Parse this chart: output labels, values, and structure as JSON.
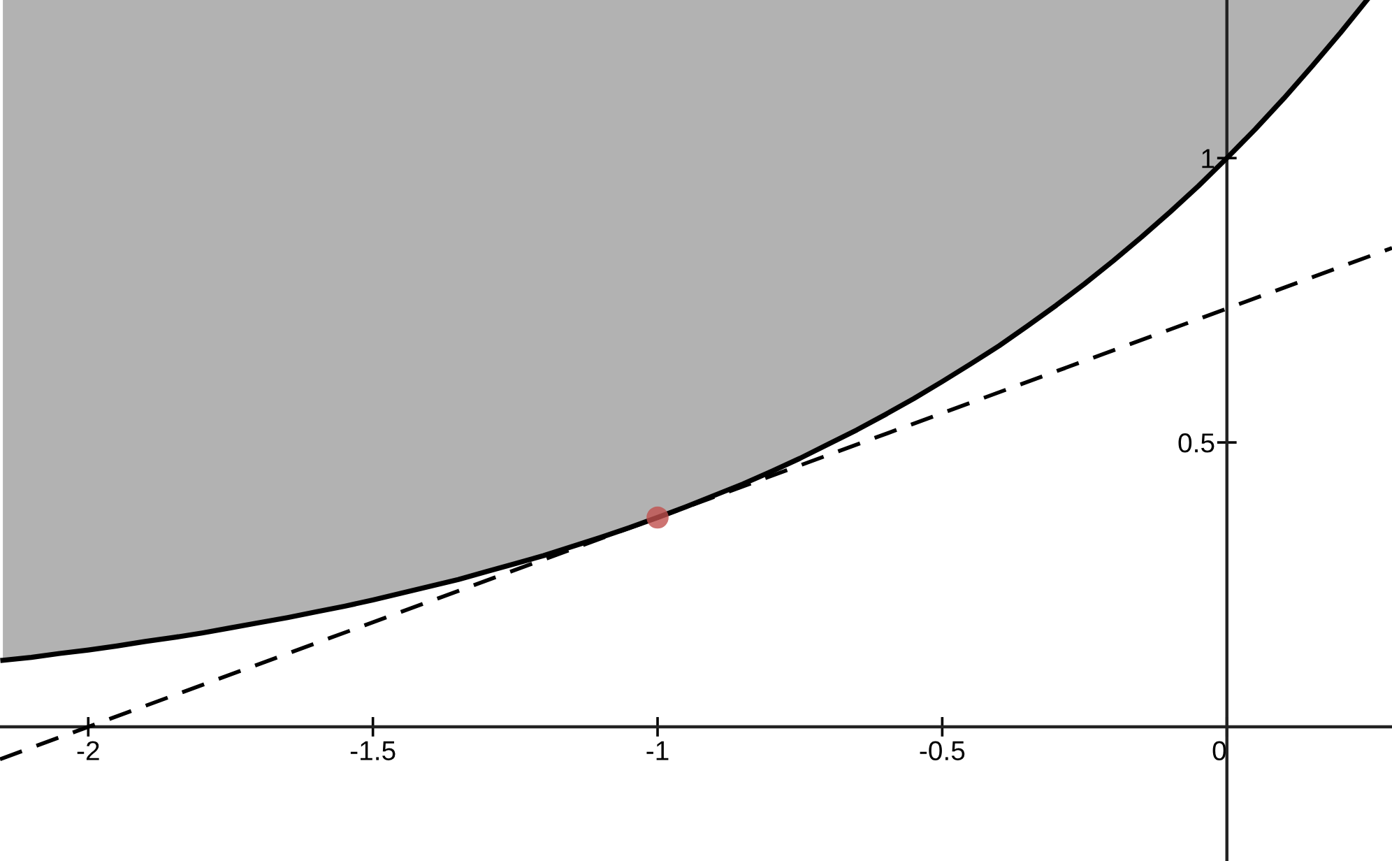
{
  "chart_data": {
    "type": "line",
    "xlim": [
      -2.155,
      0.29
    ],
    "ylim": [
      -0.236,
      1.278
    ],
    "xticks": [
      -2,
      -1.5,
      -1,
      -0.5,
      0
    ],
    "yticks": [
      0.5,
      1
    ],
    "grid": false,
    "legend": false,
    "series": [
      {
        "type": "line",
        "color": "#000000",
        "line_style": "solid",
        "x": [
          -2.15,
          -2.1,
          -2.05,
          -2.0,
          -1.95,
          -1.9,
          -1.85,
          -1.8,
          -1.75,
          -1.7,
          -1.65,
          -1.6,
          -1.55,
          -1.5,
          -1.45,
          -1.4,
          -1.35,
          -1.3,
          -1.25,
          -1.2,
          -1.15,
          -1.1,
          -1.05,
          -1.0,
          -0.95,
          -0.9,
          -0.85,
          -0.8,
          -0.75,
          -0.7,
          -0.65,
          -0.6,
          -0.55,
          -0.5,
          -0.45,
          -0.4,
          -0.35,
          -0.3,
          -0.25,
          -0.2,
          -0.15,
          -0.1,
          -0.05,
          0.0,
          0.05,
          0.1,
          0.15,
          0.2,
          0.246
        ],
        "values": [
          0.117,
          0.122,
          0.129,
          0.135,
          0.142,
          0.15,
          0.157,
          0.165,
          0.174,
          0.183,
          0.192,
          0.202,
          0.212,
          0.223,
          0.235,
          0.247,
          0.259,
          0.273,
          0.287,
          0.301,
          0.317,
          0.333,
          0.35,
          0.368,
          0.387,
          0.407,
          0.427,
          0.449,
          0.472,
          0.497,
          0.522,
          0.549,
          0.577,
          0.607,
          0.638,
          0.67,
          0.705,
          0.741,
          0.779,
          0.819,
          0.861,
          0.905,
          0.951,
          1.0,
          1.051,
          1.105,
          1.162,
          1.221,
          1.278
        ],
        "lower": [
          0.117,
          0.122,
          0.129,
          0.135,
          0.142,
          0.15,
          0.157,
          0.165,
          0.174,
          0.183,
          0.192,
          0.202,
          0.212,
          0.223,
          0.235,
          0.247,
          0.259,
          0.273,
          0.287,
          0.301,
          0.317,
          0.333,
          0.35,
          0.368,
          0.387,
          0.407,
          0.427,
          0.449,
          0.472,
          0.497,
          0.522,
          0.549,
          0.577,
          0.607,
          0.638,
          0.67,
          0.705,
          0.741,
          0.779,
          0.819,
          0.861,
          0.905,
          0.951,
          1.0,
          1.051,
          1.105,
          1.162,
          1.221,
          1.278
        ],
        "upper": [
          1.278,
          1.278,
          1.278,
          1.278,
          1.278,
          1.278,
          1.278,
          1.278,
          1.278,
          1.278,
          1.278,
          1.278,
          1.278,
          1.278,
          1.278,
          1.278,
          1.278,
          1.278,
          1.278,
          1.278,
          1.278,
          1.278,
          1.278,
          1.278,
          1.278,
          1.278,
          1.278,
          1.278,
          1.278,
          1.278,
          1.278,
          1.278,
          1.278,
          1.278,
          1.278,
          1.278,
          1.278,
          1.278,
          1.278,
          1.278,
          1.278,
          1.278,
          1.278,
          1.278,
          1.278,
          1.278,
          1.278,
          1.278,
          1.278
        ]
      },
      {
        "type": "line",
        "color": "#000000",
        "line_style": "dashed",
        "x": [
          -2.155,
          0.29
        ],
        "values": [
          -0.057,
          0.842
        ]
      },
      {
        "type": "scatter",
        "color": "#c0504d",
        "marker": "circle",
        "x": [
          -1.0
        ],
        "values": [
          0.368
        ]
      }
    ]
  }
}
